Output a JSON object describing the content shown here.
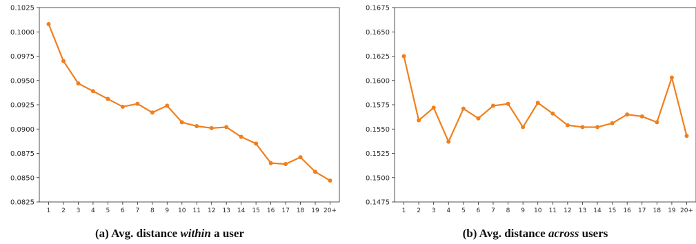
{
  "chart_data": [
    {
      "type": "line",
      "title": "",
      "xlabel": "",
      "ylabel": "",
      "categories": [
        "1",
        "2",
        "3",
        "4",
        "5",
        "6",
        "7",
        "8",
        "9",
        "10",
        "11",
        "12",
        "13",
        "14",
        "15",
        "16",
        "17",
        "18",
        "19",
        "20+"
      ],
      "series": [
        {
          "values": [
            0.1008,
            0.097,
            0.0947,
            0.0939,
            0.0931,
            0.0923,
            0.0926,
            0.0917,
            0.0924,
            0.0907,
            0.0903,
            0.0901,
            0.0902,
            0.0892,
            0.0885,
            0.0865,
            0.0864,
            0.0871,
            0.0856,
            0.0847
          ]
        }
      ],
      "ylim": [
        0.0825,
        0.1025
      ],
      "yticks": [
        "0.0825",
        "0.0850",
        "0.0875",
        "0.0900",
        "0.0925",
        "0.0950",
        "0.0975",
        "0.1000",
        "0.1025"
      ],
      "grid": false,
      "legend": "none",
      "line_color": "#f07f1c",
      "caption": {
        "prefix": "(a) Avg. distance ",
        "emphasis": "within",
        "suffix": " a user"
      }
    },
    {
      "type": "line",
      "title": "",
      "xlabel": "",
      "ylabel": "",
      "categories": [
        "1",
        "2",
        "3",
        "4",
        "5",
        "6",
        "7",
        "8",
        "9",
        "10",
        "11",
        "12",
        "13",
        "14",
        "15",
        "16",
        "17",
        "18",
        "19",
        "20+"
      ],
      "series": [
        {
          "values": [
            0.1625,
            0.1559,
            0.1572,
            0.1537,
            0.1571,
            0.1561,
            0.1574,
            0.1576,
            0.1552,
            0.1577,
            0.1566,
            0.1554,
            0.1552,
            0.1552,
            0.1556,
            0.1565,
            0.1563,
            0.1557,
            0.1603,
            0.1543
          ]
        }
      ],
      "ylim": [
        0.1475,
        0.1675
      ],
      "yticks": [
        "0.1475",
        "0.1500",
        "0.1525",
        "0.1550",
        "0.1575",
        "0.1600",
        "0.1625",
        "0.1650",
        "0.1675"
      ],
      "grid": false,
      "legend": "none",
      "line_color": "#f07f1c",
      "caption": {
        "prefix": "(b) Avg. distance ",
        "emphasis": "across",
        "suffix": " users"
      }
    }
  ]
}
